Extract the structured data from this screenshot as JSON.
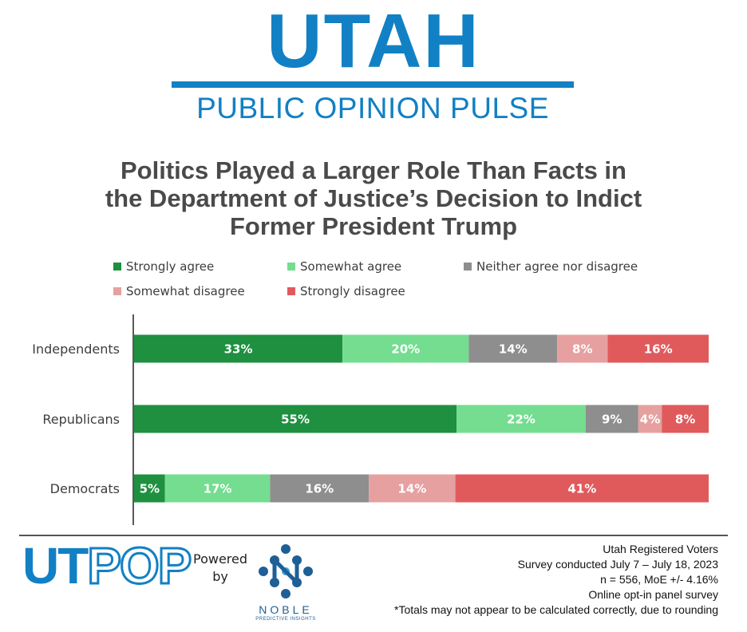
{
  "header": {
    "brand_title": "UTAH",
    "brand_subtitle": "PUBLIC OPINION PULSE",
    "accent_color": "#1280c4"
  },
  "chart_data": {
    "type": "bar",
    "orientation": "horizontal-stacked-100",
    "title_lines": [
      "Politics Played a Larger Role Than Facts in",
      "the Department of Justice’s Decision to Indict",
      "Former President Trump"
    ],
    "categories": [
      "Independents",
      "Republicans",
      "Democrats"
    ],
    "series": [
      {
        "name": "Strongly agree",
        "color": "#1e9040",
        "values": [
          33,
          55,
          5
        ],
        "labels": [
          "33%",
          "55%",
          "5%"
        ]
      },
      {
        "name": "Somewhat agree",
        "color": "#74dd90",
        "values": [
          20,
          22,
          17
        ],
        "labels": [
          "20%",
          "22%",
          "17%"
        ]
      },
      {
        "name": "Neither agree nor disagree",
        "color": "#8e8e8e",
        "values": [
          14,
          9,
          16
        ],
        "labels": [
          "14%",
          "9%",
          "16%"
        ]
      },
      {
        "name": "Somewhat disagree",
        "color": "#e6a0a0",
        "values": [
          8,
          4,
          14
        ],
        "labels": [
          "8%",
          "4%",
          "14%"
        ]
      },
      {
        "name": "Strongly disagree",
        "color": "#e05a5c",
        "values": [
          16,
          8,
          41
        ],
        "labels": [
          "16%",
          "8%",
          "41%"
        ]
      }
    ],
    "xlim": [
      0,
      100
    ],
    "legend_position": "top",
    "grid": false
  },
  "footer": {
    "logo_ut": "UT",
    "logo_pop": "POP",
    "powered_line1": "Powered",
    "powered_line2": "by",
    "noble_name": "NOBLE",
    "noble_tagline": "PREDICTIVE INSIGHTS",
    "methodology": [
      "Utah Registered Voters",
      "Survey conducted July 7 – July 18, 2023",
      "n = 556, MoE +/- 4.16%",
      "Online opt-in panel survey",
      "*Totals may not appear to be calculated correctly, due to rounding"
    ]
  }
}
